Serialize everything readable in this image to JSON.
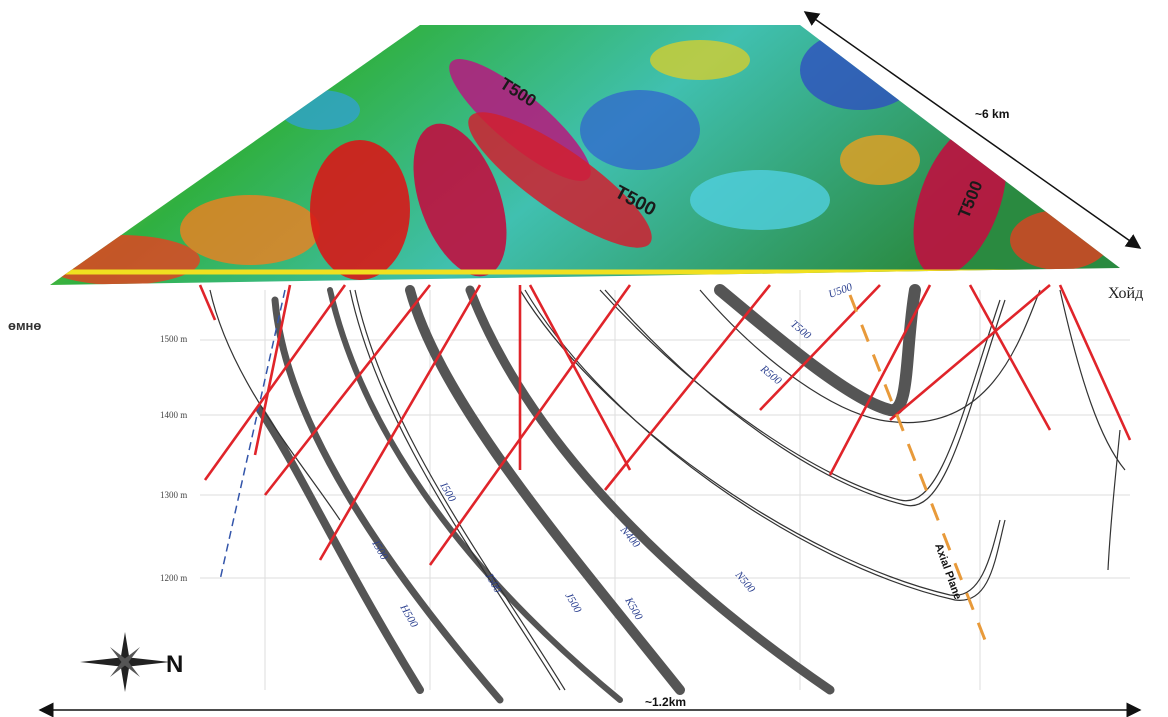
{
  "map": {
    "labels": [
      "T500",
      "T500",
      "T500"
    ]
  },
  "scale": {
    "width": "~6 km",
    "length": "~1.2km"
  },
  "directions": {
    "north": "Хойд",
    "south": "өмнө",
    "compass": "N"
  },
  "depths": [
    "1500 m",
    "1400 m",
    "1300 m",
    "1200 m"
  ],
  "horizons": [
    "T500",
    "R500",
    "U500",
    "I500",
    "I500",
    "H500",
    "J500",
    "J500",
    "K500",
    "N400",
    "N500"
  ],
  "axial_plane": "Axial Plane"
}
